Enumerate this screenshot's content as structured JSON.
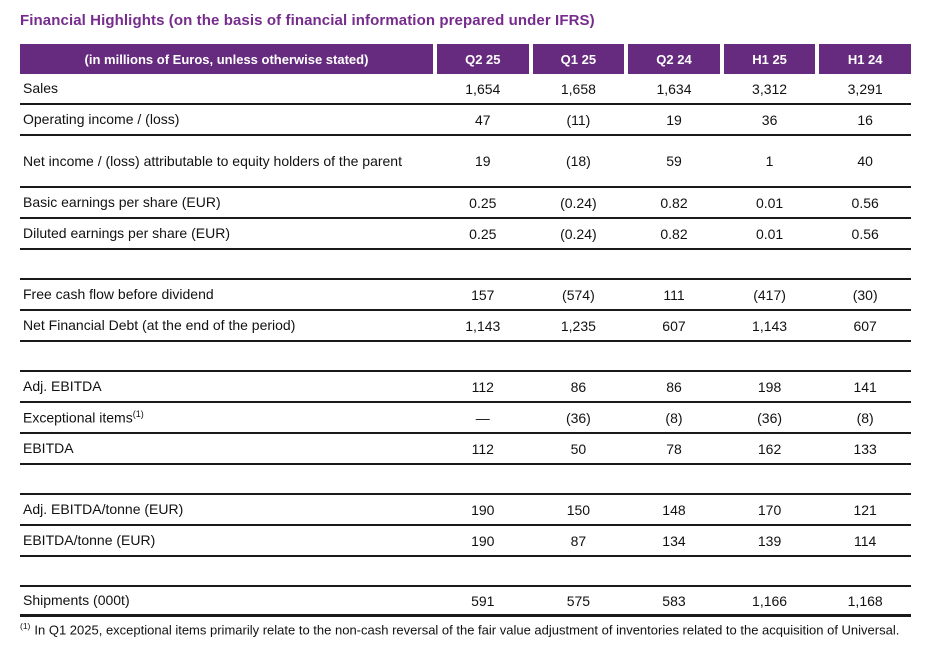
{
  "colors": {
    "title": "#762B8D",
    "header_bg": "#662B7E",
    "header_text": "#FFFFFF",
    "border": "#1A1A1A"
  },
  "title": "Financial Highlights (on the basis of financial information prepared under IFRS)",
  "table": {
    "header_label": "(in millions of Euros, unless otherwise stated)",
    "period_columns": [
      "Q2 25",
      "Q1 25",
      "Q2 24",
      "H1 25",
      "H1 24"
    ],
    "rows": [
      {
        "type": "data",
        "label": "Sales",
        "values": [
          "1,654",
          "1,658",
          "1,634",
          "3,312",
          "3,291"
        ]
      },
      {
        "type": "data",
        "label": "Operating income / (loss)",
        "values": [
          "47",
          "(11)",
          "19",
          "36",
          "16"
        ]
      },
      {
        "type": "data",
        "tall": true,
        "label": "Net income / (loss) attributable to equity holders of the parent",
        "values": [
          "19",
          "(18)",
          "59",
          "1",
          "40"
        ]
      },
      {
        "type": "data",
        "label": "Basic earnings per share (EUR)",
        "values": [
          "0.25",
          "(0.24)",
          "0.82",
          "0.01",
          "0.56"
        ]
      },
      {
        "type": "data",
        "label": "Diluted earnings per share (EUR)",
        "values": [
          "0.25",
          "(0.24)",
          "0.82",
          "0.01",
          "0.56"
        ]
      },
      {
        "type": "spacer"
      },
      {
        "type": "data",
        "label": "Free cash flow before dividend",
        "values": [
          "157",
          "(574)",
          "111",
          "(417)",
          "(30)"
        ]
      },
      {
        "type": "data",
        "label": "Net Financial Debt (at the end of the period)",
        "values": [
          "1,143",
          "1,235",
          "607",
          "1,143",
          "607"
        ]
      },
      {
        "type": "spacer"
      },
      {
        "type": "data",
        "label": "Adj. EBITDA",
        "values": [
          "112",
          "86",
          "86",
          "198",
          "141"
        ]
      },
      {
        "type": "data",
        "label": "Exceptional items",
        "label_sup": "(1)",
        "values": [
          "—",
          "(36)",
          "(8)",
          "(36)",
          "(8)"
        ]
      },
      {
        "type": "data",
        "label": "EBITDA",
        "values": [
          "112",
          "50",
          "78",
          "162",
          "133"
        ]
      },
      {
        "type": "spacer"
      },
      {
        "type": "data",
        "label": "Adj. EBITDA/tonne (EUR)",
        "values": [
          "190",
          "150",
          "148",
          "170",
          "121"
        ]
      },
      {
        "type": "data",
        "label": "EBITDA/tonne (EUR)",
        "values": [
          "190",
          "87",
          "134",
          "139",
          "114"
        ]
      },
      {
        "type": "spacer"
      },
      {
        "type": "data",
        "thick_bottom": true,
        "label": "Shipments (000t)",
        "values": [
          "591",
          "575",
          "583",
          "1,166",
          "1,168"
        ]
      }
    ]
  },
  "footnote": {
    "marker": "(1)",
    "text": "In Q1 2025, exceptional items primarily relate to the non-cash reversal of the fair value adjustment of inventories related to the acquisition of Universal."
  }
}
